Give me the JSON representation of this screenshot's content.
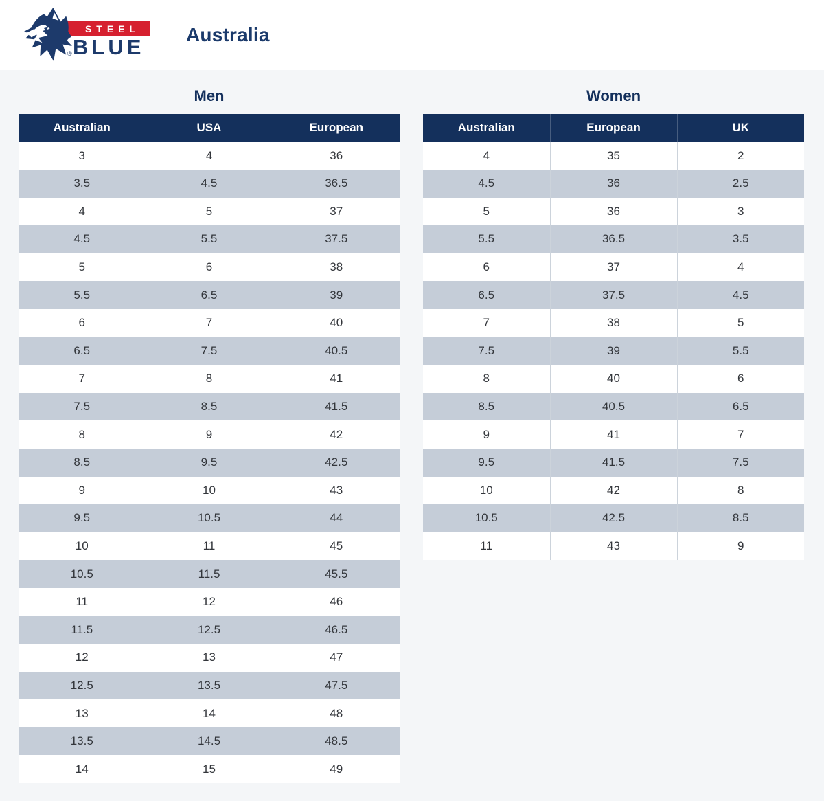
{
  "brand": {
    "steel": "STEEL",
    "blue": "BLUE",
    "registered": "®",
    "site_label": "Australia"
  },
  "colors": {
    "navy": "#14305c",
    "brand_red": "#d6202f",
    "stripe": "#c5cdd8",
    "page_bg": "#f4f6f8",
    "cell_text": "#33363b"
  },
  "tables": [
    {
      "id": "men",
      "title": "Men",
      "columns": [
        "Australian",
        "USA",
        "European"
      ],
      "rows": [
        [
          "3",
          "4",
          "36"
        ],
        [
          "3.5",
          "4.5",
          "36.5"
        ],
        [
          "4",
          "5",
          "37"
        ],
        [
          "4.5",
          "5.5",
          "37.5"
        ],
        [
          "5",
          "6",
          "38"
        ],
        [
          "5.5",
          "6.5",
          "39"
        ],
        [
          "6",
          "7",
          "40"
        ],
        [
          "6.5",
          "7.5",
          "40.5"
        ],
        [
          "7",
          "8",
          "41"
        ],
        [
          "7.5",
          "8.5",
          "41.5"
        ],
        [
          "8",
          "9",
          "42"
        ],
        [
          "8.5",
          "9.5",
          "42.5"
        ],
        [
          "9",
          "10",
          "43"
        ],
        [
          "9.5",
          "10.5",
          "44"
        ],
        [
          "10",
          "11",
          "45"
        ],
        [
          "10.5",
          "11.5",
          "45.5"
        ],
        [
          "11",
          "12",
          "46"
        ],
        [
          "11.5",
          "12.5",
          "46.5"
        ],
        [
          "12",
          "13",
          "47"
        ],
        [
          "12.5",
          "13.5",
          "47.5"
        ],
        [
          "13",
          "14",
          "48"
        ],
        [
          "13.5",
          "14.5",
          "48.5"
        ],
        [
          "14",
          "15",
          "49"
        ]
      ]
    },
    {
      "id": "women",
      "title": "Women",
      "columns": [
        "Australian",
        "European",
        "UK"
      ],
      "rows": [
        [
          "4",
          "35",
          "2"
        ],
        [
          "4.5",
          "36",
          "2.5"
        ],
        [
          "5",
          "36",
          "3"
        ],
        [
          "5.5",
          "36.5",
          "3.5"
        ],
        [
          "6",
          "37",
          "4"
        ],
        [
          "6.5",
          "37.5",
          "4.5"
        ],
        [
          "7",
          "38",
          "5"
        ],
        [
          "7.5",
          "39",
          "5.5"
        ],
        [
          "8",
          "40",
          "6"
        ],
        [
          "8.5",
          "40.5",
          "6.5"
        ],
        [
          "9",
          "41",
          "7"
        ],
        [
          "9.5",
          "41.5",
          "7.5"
        ],
        [
          "10",
          "42",
          "8"
        ],
        [
          "10.5",
          "42.5",
          "8.5"
        ],
        [
          "11",
          "43",
          "9"
        ]
      ]
    }
  ]
}
